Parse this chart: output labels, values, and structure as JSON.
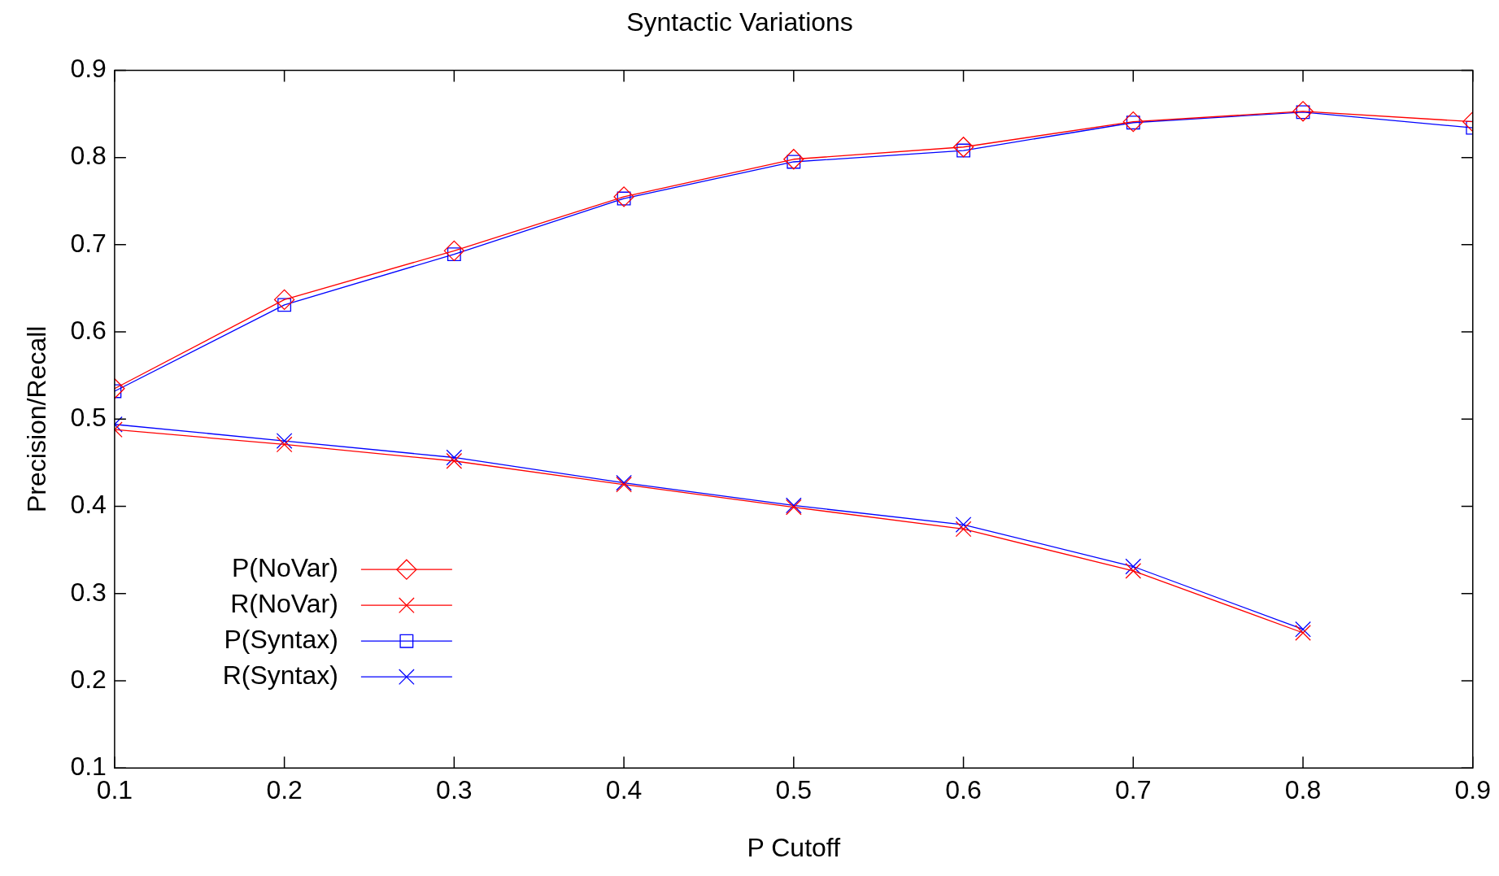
{
  "chart_data": {
    "type": "line",
    "title": "Syntactic Variations",
    "xlabel": "P Cutoff",
    "ylabel": "Precision/Recall",
    "x": [
      0.1,
      0.2,
      0.3,
      0.4,
      0.5,
      0.6,
      0.7,
      0.8,
      0.9
    ],
    "series": [
      {
        "name": "P(NoVar)",
        "color": "#ff0000",
        "marker": "diamond",
        "values": [
          0.535,
          0.637,
          0.693,
          0.755,
          0.798,
          0.812,
          0.841,
          0.853,
          0.841
        ]
      },
      {
        "name": "R(NoVar)",
        "color": "#ff0000",
        "marker": "cross",
        "values": [
          0.488,
          0.471,
          0.452,
          0.425,
          0.399,
          0.374,
          0.326,
          0.255,
          null
        ]
      },
      {
        "name": "P(Syntax)",
        "color": "#0000ff",
        "marker": "square",
        "values": [
          0.532,
          0.631,
          0.689,
          0.753,
          0.795,
          0.808,
          0.84,
          0.852,
          0.834
        ]
      },
      {
        "name": "R(Syntax)",
        "color": "#0000ff",
        "marker": "cross",
        "values": [
          0.494,
          0.475,
          0.456,
          0.427,
          0.401,
          0.379,
          0.331,
          0.259,
          null
        ]
      }
    ],
    "xlim": [
      0.1,
      0.9
    ],
    "xticks": [
      0.1,
      0.2,
      0.3,
      0.4,
      0.5,
      0.6,
      0.7,
      0.8,
      0.9
    ],
    "ylim": [
      0.1,
      0.9
    ],
    "yticks": [
      0.1,
      0.2,
      0.3,
      0.4,
      0.5,
      0.6,
      0.7,
      0.8,
      0.9
    ],
    "grid": false,
    "legend": "bottom left"
  }
}
